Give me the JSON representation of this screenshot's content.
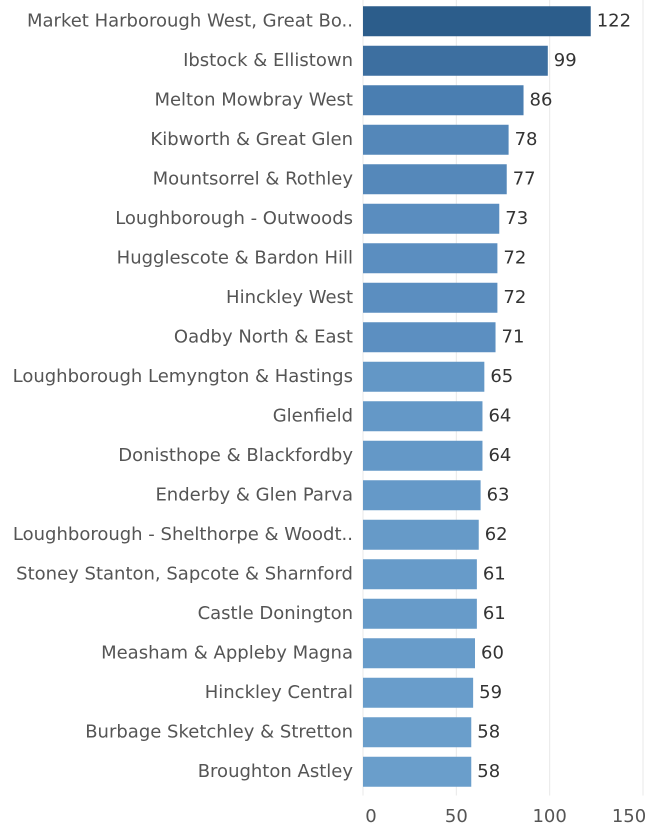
{
  "chart_data": {
    "type": "bar",
    "orientation": "horizontal",
    "categories": [
      "Market Harborough West, Great Bo..",
      "Ibstock & Ellistown",
      "Melton Mowbray West",
      "Kibworth & Great Glen",
      "Mountsorrel & Rothley",
      "Loughborough - Outwoods",
      "Hugglescote & Bardon Hill",
      "Hinckley West",
      "Oadby North & East",
      "Loughborough Lemyngton & Hastings",
      "Glenfield",
      "Donisthope & Blackfordby",
      "Enderby & Glen Parva",
      "Loughborough - Shelthorpe & Woodt..",
      "Stoney Stanton, Sapcote & Sharnford",
      "Castle Donington",
      "Measham & Appleby Magna",
      "Hinckley Central",
      "Burbage Sketchley & Stretton",
      "Broughton Astley"
    ],
    "values": [
      122,
      99,
      86,
      78,
      77,
      73,
      72,
      72,
      71,
      65,
      64,
      64,
      63,
      62,
      61,
      61,
      60,
      59,
      58,
      58
    ],
    "colors": [
      "#2c5d8b",
      "#3d6fa0",
      "#4a7eb1",
      "#5487b9",
      "#5588ba",
      "#5a8dbf",
      "#5b8ec0",
      "#5b8ec0",
      "#5c8fc1",
      "#6397c6",
      "#6498c7",
      "#6498c7",
      "#6599c8",
      "#669ac8",
      "#679bc9",
      "#679bc9",
      "#689cca",
      "#699dcb",
      "#6a9ecb",
      "#6a9ecb"
    ],
    "xlim": [
      0,
      150
    ],
    "xticks": [
      0,
      50,
      100,
      150
    ],
    "grid": true
  }
}
